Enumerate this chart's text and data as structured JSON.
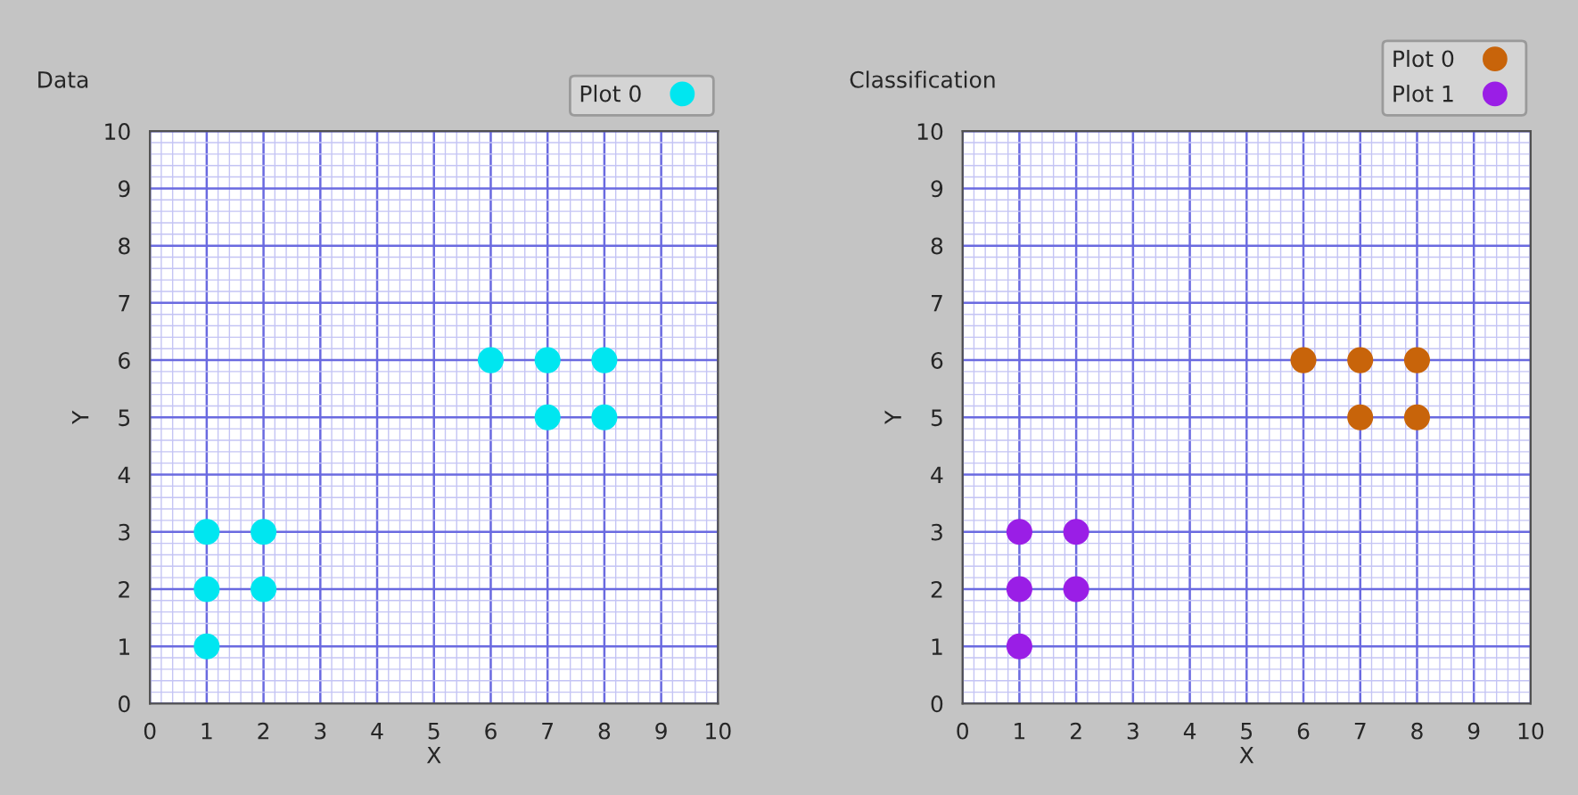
{
  "chart_data": [
    {
      "type": "scatter",
      "title": "Data",
      "xlabel": "X",
      "ylabel": "Y",
      "xlim": [
        0,
        10
      ],
      "ylim": [
        0,
        10
      ],
      "xticks": [
        0,
        1,
        2,
        3,
        4,
        5,
        6,
        7,
        8,
        9,
        10,
        {
          "value": 0.2,
          "label": null
        },
        {
          "value": 0.4,
          "label": null
        },
        {
          "value": 0.6,
          "label": null
        },
        {
          "value": 0.8,
          "label": null
        },
        {
          "value": 1.2,
          "label": null
        },
        {
          "value": 1.4,
          "label": null
        },
        {
          "value": 1.6,
          "label": null
        },
        {
          "value": 1.8,
          "label": null
        },
        {
          "value": 2.2,
          "label": null
        },
        {
          "value": 2.4,
          "label": null
        },
        {
          "value": 2.6,
          "label": null
        },
        {
          "value": 2.8,
          "label": null
        },
        {
          "value": 3.2,
          "label": null
        },
        {
          "value": 3.4,
          "label": null
        },
        {
          "value": 3.6,
          "label": null
        },
        {
          "value": 3.8,
          "label": null
        },
        {
          "value": 4.2,
          "label": null
        },
        {
          "value": 4.4,
          "label": null
        },
        {
          "value": 4.6,
          "label": null
        },
        {
          "value": 4.8,
          "label": null
        },
        {
          "value": 5.2,
          "label": null
        },
        {
          "value": 5.4,
          "label": null
        },
        {
          "value": 5.6,
          "label": null
        },
        {
          "value": 5.8,
          "label": null
        },
        {
          "value": 6.2,
          "label": null
        },
        {
          "value": 6.4,
          "label": null
        },
        {
          "value": 6.6,
          "label": null
        },
        {
          "value": 6.8,
          "label": null
        },
        {
          "value": 7.2,
          "label": null
        },
        {
          "value": 7.4,
          "label": null
        },
        {
          "value": 7.6,
          "label": null
        },
        {
          "value": 7.8,
          "label": null
        },
        {
          "value": 8.2,
          "label": null
        },
        {
          "value": 8.4,
          "label": null
        },
        {
          "value": 8.6,
          "label": null
        },
        {
          "value": 8.8,
          "label": null
        },
        {
          "value": 9.2,
          "label": null
        },
        {
          "value": 9.4,
          "label": null
        },
        {
          "value": 9.6,
          "label": null
        },
        {
          "value": 9.8,
          "label": null
        }
      ],
      "yticks": [
        0,
        1,
        2,
        3,
        4,
        5,
        6,
        7,
        8,
        9,
        10,
        {
          "value": 0.2,
          "label": null
        },
        {
          "value": 0.4,
          "label": null
        },
        {
          "value": 0.6,
          "label": null
        },
        {
          "value": 0.8,
          "label": null
        },
        {
          "value": 1.2,
          "label": null
        },
        {
          "value": 1.4,
          "label": null
        },
        {
          "value": 1.6,
          "label": null
        },
        {
          "value": 1.8,
          "label": null
        },
        {
          "value": 2.2,
          "label": null
        },
        {
          "value": 2.4,
          "label": null
        },
        {
          "value": 2.6,
          "label": null
        },
        {
          "value": 2.8,
          "label": null
        },
        {
          "value": 3.2,
          "label": null
        },
        {
          "value": 3.4,
          "label": null
        },
        {
          "value": 3.6,
          "label": null
        },
        {
          "value": 3.8,
          "label": null
        },
        {
          "value": 4.2,
          "label": null
        },
        {
          "value": 4.4,
          "label": null
        },
        {
          "value": 4.6,
          "label": null
        },
        {
          "value": 4.8,
          "label": null
        },
        {
          "value": 5.2,
          "label": null
        },
        {
          "value": 5.4,
          "label": null
        },
        {
          "value": 5.6,
          "label": null
        },
        {
          "value": 5.8,
          "label": null
        },
        {
          "value": 6.2,
          "label": null
        },
        {
          "value": 6.4,
          "label": null
        },
        {
          "value": 6.6,
          "label": null
        },
        {
          "value": 6.8,
          "label": null
        },
        {
          "value": 7.2,
          "label": null
        },
        {
          "value": 7.4,
          "label": null
        },
        {
          "value": 7.6,
          "label": null
        },
        {
          "value": 7.8,
          "label": null
        },
        {
          "value": 8.2,
          "label": null
        },
        {
          "value": 8.4,
          "label": null
        },
        {
          "value": 8.6,
          "label": null
        },
        {
          "value": 8.8,
          "label": null
        },
        {
          "value": 9.2,
          "label": null
        },
        {
          "value": 9.4,
          "label": null
        },
        {
          "value": 9.6,
          "label": null
        },
        {
          "value": 9.8,
          "label": null
        }
      ],
      "grid": true,
      "legend": "top right",
      "marker": "circle",
      "series": [
        {
          "name": "Plot 0",
          "color": "#00e6f0",
          "x": [
            1,
            1,
            1,
            2,
            2,
            6,
            7,
            7,
            8,
            8
          ],
          "values": [
            1,
            2,
            3,
            2,
            3,
            6,
            6,
            5,
            6,
            5
          ]
        }
      ]
    },
    {
      "type": "scatter",
      "title": "Classification",
      "xlabel": "X",
      "ylabel": "Y",
      "xlim": [
        0,
        10
      ],
      "ylim": [
        0,
        10
      ],
      "xticks": [
        0,
        1,
        2,
        3,
        4,
        5,
        6,
        7,
        8,
        9,
        10,
        {
          "value": 0.2,
          "label": null
        },
        {
          "value": 0.4,
          "label": null
        },
        {
          "value": 0.6,
          "label": null
        },
        {
          "value": 0.8,
          "label": null
        },
        {
          "value": 1.2,
          "label": null
        },
        {
          "value": 1.4,
          "label": null
        },
        {
          "value": 1.6,
          "label": null
        },
        {
          "value": 1.8,
          "label": null
        },
        {
          "value": 2.2,
          "label": null
        },
        {
          "value": 2.4,
          "label": null
        },
        {
          "value": 2.6,
          "label": null
        },
        {
          "value": 2.8,
          "label": null
        },
        {
          "value": 3.2,
          "label": null
        },
        {
          "value": 3.4,
          "label": null
        },
        {
          "value": 3.6,
          "label": null
        },
        {
          "value": 3.8,
          "label": null
        },
        {
          "value": 4.2,
          "label": null
        },
        {
          "value": 4.4,
          "label": null
        },
        {
          "value": 4.6,
          "label": null
        },
        {
          "value": 4.8,
          "label": null
        },
        {
          "value": 5.2,
          "label": null
        },
        {
          "value": 5.4,
          "label": null
        },
        {
          "value": 5.6,
          "label": null
        },
        {
          "value": 5.8,
          "label": null
        },
        {
          "value": 6.2,
          "label": null
        },
        {
          "value": 6.4,
          "label": null
        },
        {
          "value": 6.6,
          "label": null
        },
        {
          "value": 6.8,
          "label": null
        },
        {
          "value": 7.2,
          "label": null
        },
        {
          "value": 7.4,
          "label": null
        },
        {
          "value": 7.6,
          "label": null
        },
        {
          "value": 7.8,
          "label": null
        },
        {
          "value": 8.2,
          "label": null
        },
        {
          "value": 8.4,
          "label": null
        },
        {
          "value": 8.6,
          "label": null
        },
        {
          "value": 8.8,
          "label": null
        },
        {
          "value": 9.2,
          "label": null
        },
        {
          "value": 9.4,
          "label": null
        },
        {
          "value": 9.6,
          "label": null
        },
        {
          "value": 9.8,
          "label": null
        }
      ],
      "yticks": [
        0,
        1,
        2,
        3,
        4,
        5,
        6,
        7,
        8,
        9,
        10,
        {
          "value": 0.2,
          "label": null
        },
        {
          "value": 0.4,
          "label": null
        },
        {
          "value": 0.6,
          "label": null
        },
        {
          "value": 0.8,
          "label": null
        },
        {
          "value": 1.2,
          "label": null
        },
        {
          "value": 1.4,
          "label": null
        },
        {
          "value": 1.6,
          "label": null
        },
        {
          "value": 1.8,
          "label": null
        },
        {
          "value": 2.2,
          "label": null
        },
        {
          "value": 2.4,
          "label": null
        },
        {
          "value": 2.6,
          "label": null
        },
        {
          "value": 2.8,
          "label": null
        },
        {
          "value": 3.2,
          "label": null
        },
        {
          "value": 3.4,
          "label": null
        },
        {
          "value": 3.6,
          "label": null
        },
        {
          "value": 3.8,
          "label": null
        },
        {
          "value": 4.2,
          "label": null
        },
        {
          "value": 4.4,
          "label": null
        },
        {
          "value": 4.6,
          "label": null
        },
        {
          "value": 4.8,
          "label": null
        },
        {
          "value": 5.2,
          "label": null
        },
        {
          "value": 5.4,
          "label": null
        },
        {
          "value": 5.6,
          "label": null
        },
        {
          "value": 5.8,
          "label": null
        },
        {
          "value": 6.2,
          "label": null
        },
        {
          "value": 6.4,
          "label": null
        },
        {
          "value": 6.6,
          "label": null
        },
        {
          "value": 6.8,
          "label": null
        },
        {
          "value": 7.2,
          "label": null
        },
        {
          "value": 7.4,
          "label": null
        },
        {
          "value": 7.6,
          "label": null
        },
        {
          "value": 7.8,
          "label": null
        },
        {
          "value": 8.2,
          "label": null
        },
        {
          "value": 8.4,
          "label": null
        },
        {
          "value": 8.6,
          "label": null
        },
        {
          "value": 8.8,
          "label": null
        },
        {
          "value": 9.2,
          "label": null
        },
        {
          "value": 9.4,
          "label": null
        },
        {
          "value": 9.6,
          "label": null
        },
        {
          "value": 9.8,
          "label": null
        }
      ],
      "grid": true,
      "legend": "top right",
      "marker": "circle",
      "series": [
        {
          "name": "Plot 0",
          "color": "#c8640a",
          "x": [
            6,
            7,
            7,
            8,
            8
          ],
          "values": [
            6,
            6,
            5,
            6,
            5
          ]
        },
        {
          "name": "Plot 1",
          "color": "#9a1ee6",
          "x": [
            1,
            1,
            1,
            2,
            2
          ],
          "values": [
            1,
            2,
            3,
            2,
            3
          ]
        }
      ]
    }
  ]
}
